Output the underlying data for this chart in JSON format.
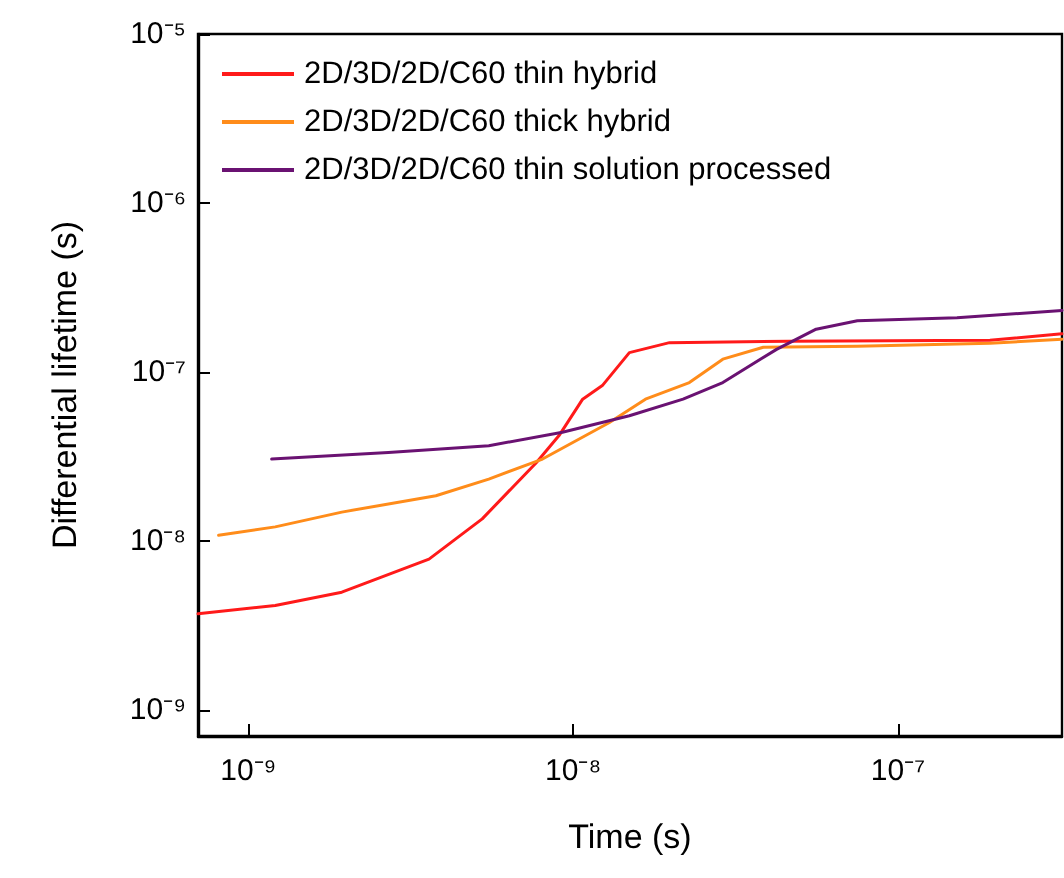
{
  "chart_data": {
    "type": "line",
    "xlabel": "Time (s)",
    "ylabel": "Differential lifetime (s)",
    "log": "xy",
    "grid": false,
    "legend": "top left",
    "marker": "none",
    "line_style": "solid",
    "xlim": [
      7e-10,
      3.2e-07
    ],
    "ylim": [
      7e-10,
      1e-05
    ],
    "xticks": [
      {
        "value": 1e-09,
        "label": "10⁻⁹"
      },
      {
        "value": 1e-08,
        "label": "10⁻⁸"
      },
      {
        "value": 1e-07,
        "label": "10⁻⁷"
      }
    ],
    "yticks": [
      {
        "value": 1e-09,
        "label": "10⁻⁹"
      },
      {
        "value": 1e-08,
        "label": "10⁻⁸"
      },
      {
        "value": 1e-07,
        "label": "10⁻⁷"
      },
      {
        "value": 1e-06,
        "label": "10⁻⁶"
      },
      {
        "value": 1e-05,
        "label": "10⁻⁵"
      }
    ],
    "series": [
      {
        "name": "2D/3D/2D/C60 thin hybrid",
        "color": "#ff1a1a",
        "x": [
          7e-10,
          1.21e-09,
          1.94e-09,
          3.6e-09,
          5.25e-09,
          7.7e-09,
          9.05e-09,
          1.07e-08,
          1.23e-08,
          1.49e-08,
          1.98e-08,
          4.64e-08,
          1.92e-07,
          3.2e-07
        ],
        "values": [
          3.7e-09,
          4.15e-09,
          4.97e-09,
          7.8e-09,
          1.35e-08,
          2.9e-08,
          4.2e-08,
          6.9e-08,
          8.3e-08,
          1.3e-07,
          1.49e-07,
          1.52e-07,
          1.54e-07,
          1.68e-07
        ]
      },
      {
        "name": "2D/3D/2D/C60 thick hybrid",
        "color": "#ff8c1a",
        "x": [
          8.1e-10,
          1.21e-09,
          1.94e-09,
          3.78e-09,
          5.5e-09,
          8.05e-09,
          1.29e-08,
          1.67e-08,
          2.28e-08,
          2.89e-08,
          3.85e-08,
          7.5e-08,
          1.92e-07,
          3.2e-07
        ],
        "values": [
          1.08e-08,
          1.21e-08,
          1.48e-08,
          1.85e-08,
          2.32e-08,
          3.05e-08,
          5e-08,
          6.9e-08,
          8.65e-08,
          1.19e-07,
          1.4e-07,
          1.42e-07,
          1.48e-07,
          1.56e-07
        ]
      },
      {
        "name": "2D/3D/2D/C60 thin solution processed",
        "color": "#6a1272",
        "x": [
          1.18e-09,
          2.7e-09,
          5.5e-09,
          9.27e-09,
          1.49e-08,
          2.18e-08,
          2.89e-08,
          4.23e-08,
          5.6e-08,
          7.5e-08,
          1.52e-07,
          3.2e-07
        ],
        "values": [
          3.05e-08,
          3.34e-08,
          3.66e-08,
          4.39e-08,
          5.5e-08,
          6.9e-08,
          8.65e-08,
          1.36e-07,
          1.79e-07,
          2.01e-07,
          2.09e-07,
          2.31e-07
        ]
      }
    ]
  }
}
